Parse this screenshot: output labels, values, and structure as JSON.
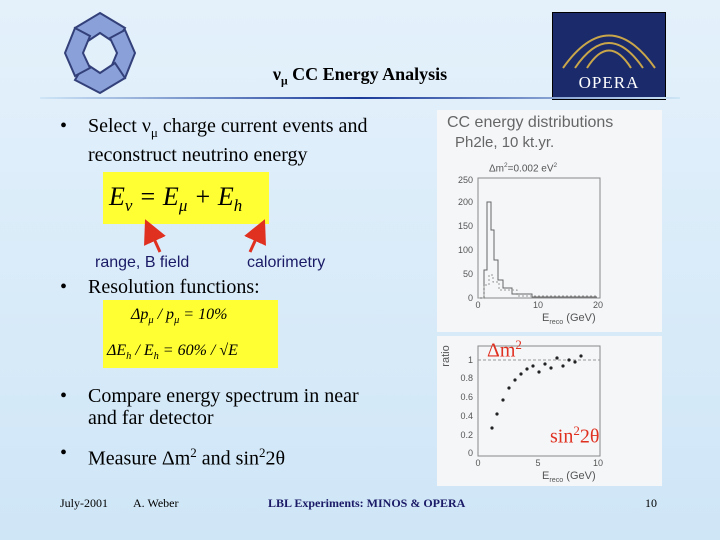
{
  "header": {
    "title_symbol": "ν",
    "title_subscript": "μ",
    "title_text": "CC Energy Analysis",
    "logo_text": "OPERA"
  },
  "bullets": [
    {
      "parts": [
        "Select ν",
        "μ",
        " charge current events and",
        "reconstruct neutrino energy"
      ]
    },
    {
      "parts": [
        "Resolution functions:"
      ]
    },
    {
      "parts": [
        "Compare energy spectrum in near",
        "and far detector"
      ]
    },
    {
      "parts": [
        "Measure Δm",
        "2",
        " and sin",
        "2",
        "2θ"
      ]
    }
  ],
  "formula_energy": [
    "E",
    "ν",
    " = E",
    "μ",
    " + E",
    "h"
  ],
  "formula_labels": [
    "range, B field",
    "calorimetry"
  ],
  "formula_resolution": {
    "line1": [
      "Δp",
      "μ",
      " / p",
      "μ",
      " = 10%"
    ],
    "line2": [
      "ΔE",
      "h",
      " / E",
      "h",
      " = 60% / √E"
    ]
  },
  "plot_top": {
    "title": "CC energy distributions",
    "subtitle": "Ph2le, 10 kt.yr.",
    "note": [
      "Δm",
      "2",
      "=0.002 eV",
      "2"
    ],
    "yticks": [
      "250",
      "200",
      "150",
      "100",
      "50",
      "0"
    ],
    "xticks": [
      "0",
      "10",
      "20"
    ],
    "xlabel": [
      "E",
      "reco",
      " (GeV)"
    ]
  },
  "plot_bottom": {
    "ylabel": "ratio",
    "yticks": [
      "1",
      "0.8",
      "0.6",
      "0.4",
      "0.2",
      "0"
    ],
    "xticks": [
      "0",
      "5",
      "10"
    ],
    "xlabel": [
      "E",
      "reco",
      " (GeV)"
    ]
  },
  "annotations": {
    "dm2": [
      "Δm",
      "2"
    ],
    "sin2": [
      "sin",
      "2",
      "2θ"
    ]
  },
  "footer": {
    "date": "July-2001",
    "author": "A. Weber",
    "title": "LBL Experiments: MINOS & OPERA",
    "page": "10"
  }
}
